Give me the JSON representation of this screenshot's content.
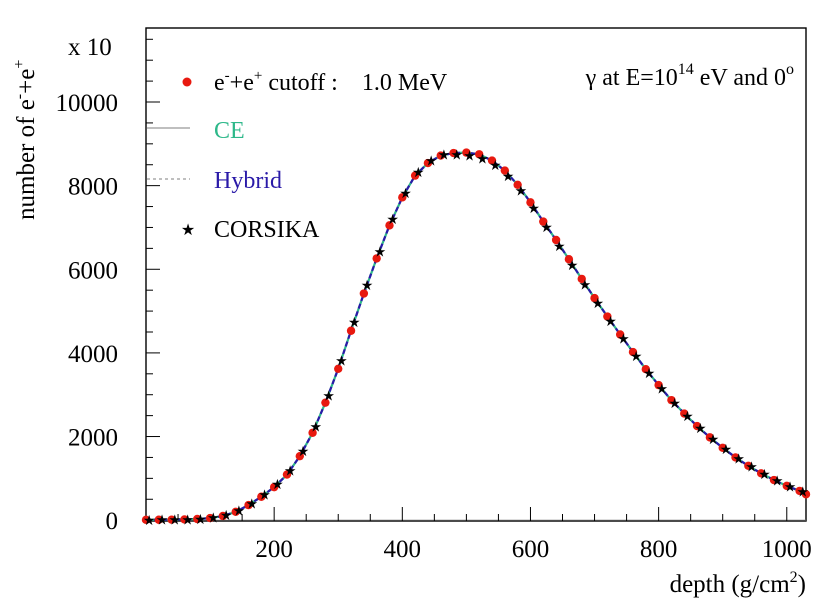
{
  "chart_data": {
    "type": "line",
    "xlabel": "depth (g/cm",
    "xlabel_sup": "2",
    "xlabel_close": ")",
    "ylabel_main": "number of e",
    "ylabel_sup1": "-",
    "ylabel_mid": "+e",
    "ylabel_sup2": "+",
    "y_multiplier_text": "x 10",
    "annotation": {
      "pre": "γ at E=10",
      "sup": "14",
      "post": " eV and 0",
      "sup2": "o"
    },
    "xlim": [
      0,
      1030
    ],
    "ylim": [
      -20,
      11770
    ],
    "xticks": [
      200,
      400,
      600,
      800,
      1000
    ],
    "yticks": [
      0,
      2000,
      4000,
      6000,
      8000,
      10000
    ],
    "grid": false,
    "legend_position": "top-left",
    "series": [
      {
        "name": "e-+e+ cutoff :  1.0 MeV",
        "legend": {
          "base": "e",
          "sup1": "-",
          "mid": "+e",
          "sup2": "+",
          "rest": " cutoff :    1.0 MeV"
        },
        "marker": "circle",
        "color": "#e8190f",
        "x": [
          0,
          20,
          40,
          60,
          80,
          100,
          120,
          140,
          160,
          180,
          200,
          220,
          240,
          260,
          280,
          300,
          320,
          340,
          360,
          380,
          400,
          420,
          440,
          460,
          480,
          500,
          520,
          540,
          560,
          580,
          600,
          620,
          640,
          660,
          680,
          700,
          720,
          740,
          760,
          780,
          800,
          820,
          840,
          860,
          880,
          900,
          920,
          940,
          960,
          980,
          1000,
          1020,
          1030
        ],
        "y": [
          8,
          10,
          12,
          18,
          28,
          50,
          100,
          200,
          360,
          560,
          790,
          1090,
          1530,
          2090,
          2810,
          3620,
          4530,
          5420,
          6260,
          7050,
          7720,
          8240,
          8540,
          8720,
          8780,
          8790,
          8750,
          8600,
          8360,
          8020,
          7600,
          7140,
          6700,
          6240,
          5770,
          5310,
          4870,
          4440,
          4020,
          3610,
          3230,
          2870,
          2550,
          2250,
          1980,
          1730,
          1500,
          1300,
          1120,
          960,
          820,
          700,
          620
        ]
      },
      {
        "name": "CE",
        "legend_label": "CE",
        "legend_color": "#2eb88a",
        "style": "solid",
        "color": "#2eb88a",
        "x": [
          0,
          20,
          40,
          60,
          80,
          100,
          120,
          140,
          160,
          180,
          200,
          220,
          240,
          260,
          280,
          300,
          320,
          340,
          360,
          380,
          400,
          420,
          440,
          460,
          480,
          500,
          520,
          540,
          560,
          580,
          600,
          620,
          640,
          660,
          680,
          700,
          720,
          740,
          760,
          780,
          800,
          820,
          840,
          860,
          880,
          900,
          920,
          940,
          960,
          980,
          1000,
          1020,
          1030
        ],
        "y": [
          8,
          10,
          12,
          18,
          28,
          50,
          100,
          200,
          360,
          560,
          790,
          1090,
          1530,
          2090,
          2810,
          3620,
          4530,
          5420,
          6260,
          7050,
          7720,
          8240,
          8540,
          8720,
          8780,
          8790,
          8750,
          8600,
          8360,
          8020,
          7600,
          7140,
          6700,
          6240,
          5770,
          5310,
          4870,
          4440,
          4020,
          3610,
          3230,
          2870,
          2550,
          2250,
          1980,
          1730,
          1500,
          1300,
          1120,
          960,
          820,
          700,
          620
        ]
      },
      {
        "name": "Hybrid",
        "legend_label": "Hybrid",
        "legend_color": "#2a1aa8",
        "style": "dashed",
        "color": "#2a1aa8",
        "x": [
          0,
          20,
          40,
          60,
          80,
          100,
          120,
          140,
          160,
          180,
          200,
          220,
          240,
          260,
          280,
          300,
          320,
          340,
          360,
          380,
          400,
          420,
          440,
          460,
          480,
          500,
          520,
          540,
          560,
          580,
          600,
          620,
          640,
          660,
          680,
          700,
          720,
          740,
          760,
          780,
          800,
          820,
          840,
          860,
          880,
          900,
          920,
          940,
          960,
          980,
          1000,
          1020,
          1030
        ],
        "y": [
          8,
          10,
          12,
          18,
          28,
          50,
          100,
          200,
          360,
          560,
          790,
          1090,
          1530,
          2090,
          2810,
          3620,
          4530,
          5420,
          6260,
          7050,
          7720,
          8240,
          8540,
          8720,
          8780,
          8790,
          8750,
          8600,
          8360,
          8020,
          7600,
          7140,
          6700,
          6240,
          5770,
          5310,
          4870,
          4440,
          4020,
          3610,
          3230,
          2870,
          2550,
          2250,
          1980,
          1730,
          1500,
          1300,
          1120,
          960,
          820,
          700,
          620
        ]
      },
      {
        "name": "CORSIKA",
        "legend_label": "CORSIKA",
        "legend_color": "#000000",
        "marker": "star",
        "color": "#000000",
        "x": [
          5,
          25,
          45,
          65,
          85,
          105,
          125,
          145,
          165,
          185,
          205,
          225,
          245,
          265,
          285,
          305,
          325,
          345,
          365,
          385,
          405,
          425,
          445,
          465,
          485,
          505,
          525,
          545,
          565,
          585,
          605,
          625,
          645,
          665,
          685,
          705,
          725,
          745,
          765,
          785,
          805,
          825,
          845,
          865,
          885,
          905,
          925,
          945,
          965,
          985,
          1005,
          1025
        ],
        "y": [
          8,
          11,
          14,
          20,
          32,
          60,
          120,
          230,
          400,
          610,
          860,
          1190,
          1660,
          2240,
          2980,
          3820,
          4740,
          5620,
          6430,
          7200,
          7830,
          8330,
          8600,
          8740,
          8750,
          8720,
          8650,
          8490,
          8230,
          7880,
          7460,
          7010,
          6560,
          6100,
          5640,
          5190,
          4760,
          4340,
          3920,
          3520,
          3150,
          2800,
          2490,
          2200,
          1940,
          1700,
          1470,
          1280,
          1100,
          950,
          800,
          690
        ]
      }
    ]
  }
}
